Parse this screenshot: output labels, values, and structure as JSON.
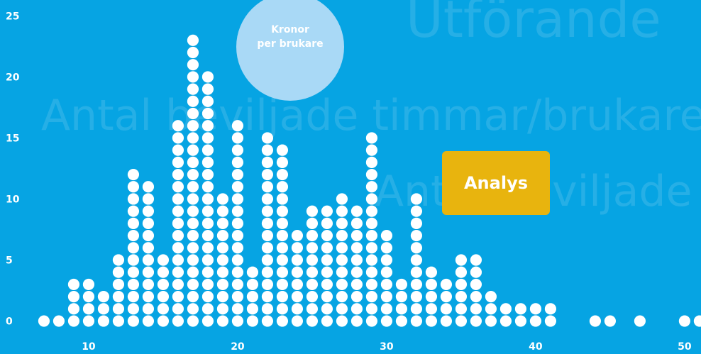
{
  "chart_data": {
    "type": "dot-histogram",
    "background_texts": [
      "Utförande",
      "Antal beviljade timmar/brukare",
      "Antal beviljade"
    ],
    "bubble_label": [
      "Kronor",
      "per brukare"
    ],
    "button": "Analys",
    "x": [
      7,
      8,
      9,
      10,
      11,
      12,
      13,
      14,
      15,
      16,
      17,
      18,
      19,
      20,
      21,
      22,
      23,
      24,
      25,
      26,
      27,
      28,
      29,
      30,
      31,
      32,
      33,
      34,
      35,
      36,
      37,
      38,
      39,
      40,
      41,
      44,
      45,
      47,
      50,
      51
    ],
    "values": [
      1,
      1,
      4,
      4,
      3,
      6,
      13,
      12,
      6,
      17,
      24,
      21,
      11,
      17,
      5,
      16,
      15,
      8,
      10,
      10,
      11,
      10,
      16,
      8,
      4,
      11,
      5,
      4,
      6,
      6,
      3,
      2,
      2,
      2,
      2,
      1,
      1,
      1,
      1,
      1
    ],
    "color": "#ffffff",
    "xlim": [
      4.05,
      51.1
    ],
    "xticks": [
      10,
      20,
      30,
      40,
      50
    ],
    "ylim": [
      -2.7,
      26.3
    ],
    "yticks": [
      0,
      5,
      10,
      15,
      20,
      25
    ]
  }
}
